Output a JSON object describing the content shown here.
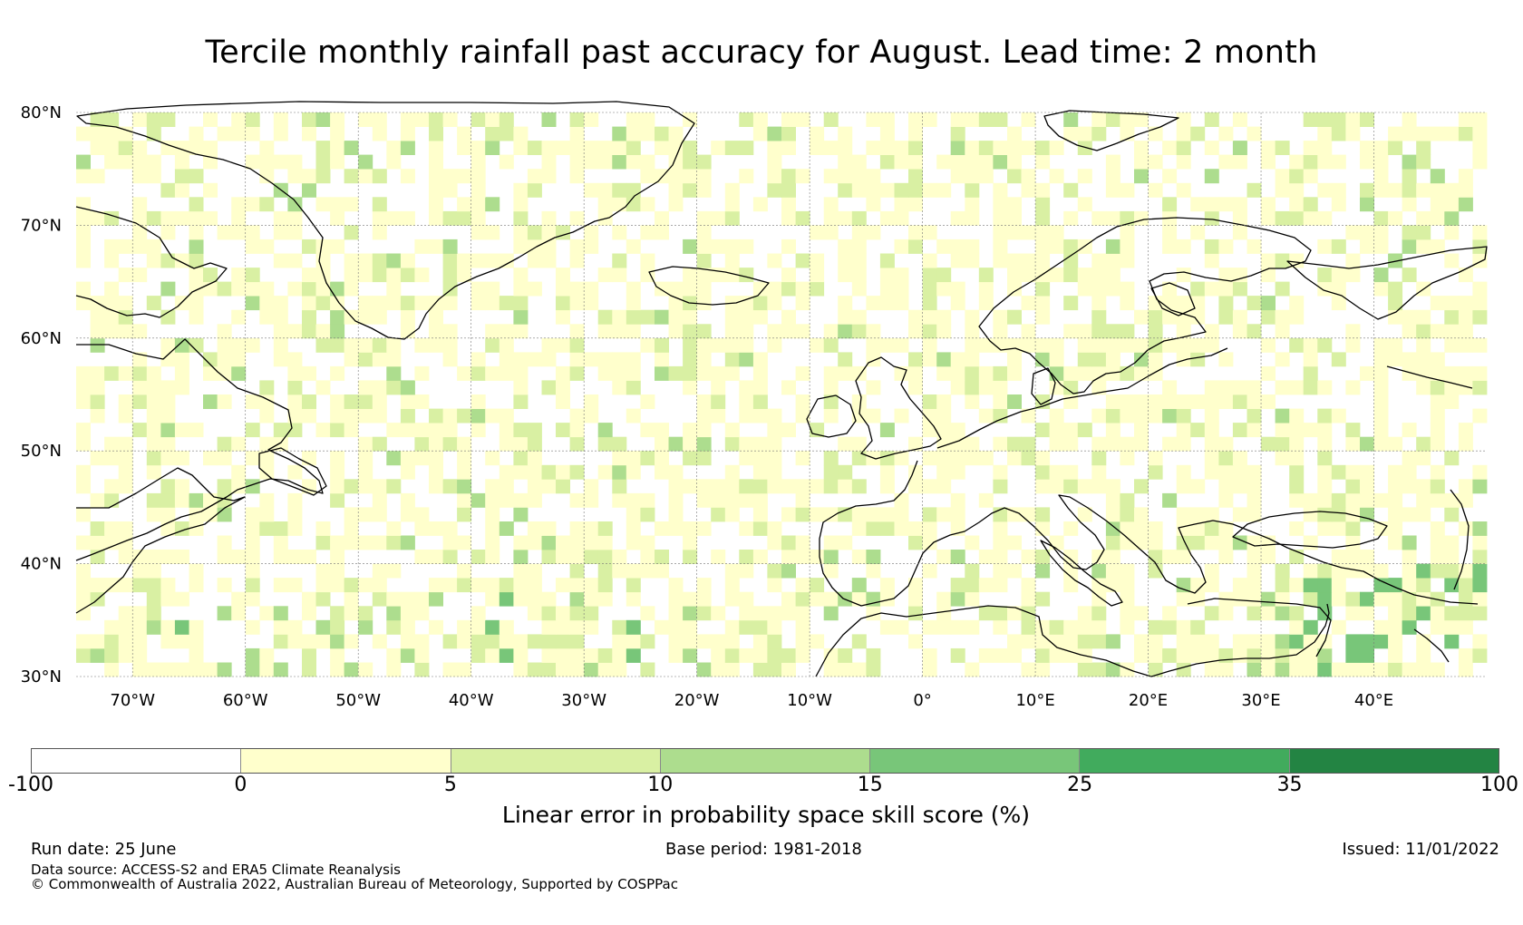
{
  "title": "Tercile monthly rainfall past accuracy for August. Lead time: 2 month",
  "map": {
    "region": "North Atlantic and Europe",
    "lon_range": [
      -75,
      50
    ],
    "lat_range": [
      30,
      80
    ],
    "lat_labels": [
      "30°N",
      "40°N",
      "50°N",
      "60°N",
      "70°N",
      "80°N"
    ],
    "lat_values": [
      30,
      40,
      50,
      60,
      70,
      80
    ],
    "lon_labels": [
      "70°W",
      "60°W",
      "50°W",
      "40°W",
      "30°W",
      "20°W",
      "10°W",
      "0°",
      "10°E",
      "20°E",
      "30°E",
      "40°E"
    ],
    "lon_values": [
      -70,
      -60,
      -50,
      -40,
      -30,
      -20,
      -10,
      0,
      10,
      20,
      30,
      40
    ],
    "gridlines": true,
    "coastline_color": "#000000"
  },
  "colorbar": {
    "label": "Linear error in probability space skill score (%)",
    "tick_labels": [
      "-100",
      "0",
      "5",
      "10",
      "15",
      "25",
      "35",
      "100"
    ],
    "colors": [
      "#ffffff",
      "#ffffcc",
      "#d9f0a3",
      "#addd8e",
      "#78c679",
      "#41ab5d",
      "#238443"
    ]
  },
  "footer": {
    "run_date": "Run date: 25 June",
    "base_period": "Base period: 1981-2018",
    "issued": "Issued: 11/01/2022",
    "data_source": "Data source: ACCESS-S2 and ERA5 Climate Reanalysis",
    "copyright": "© Commonwealth of Australia 2022, Australian Bureau of Meteorology, Supported by COSPPac"
  }
}
